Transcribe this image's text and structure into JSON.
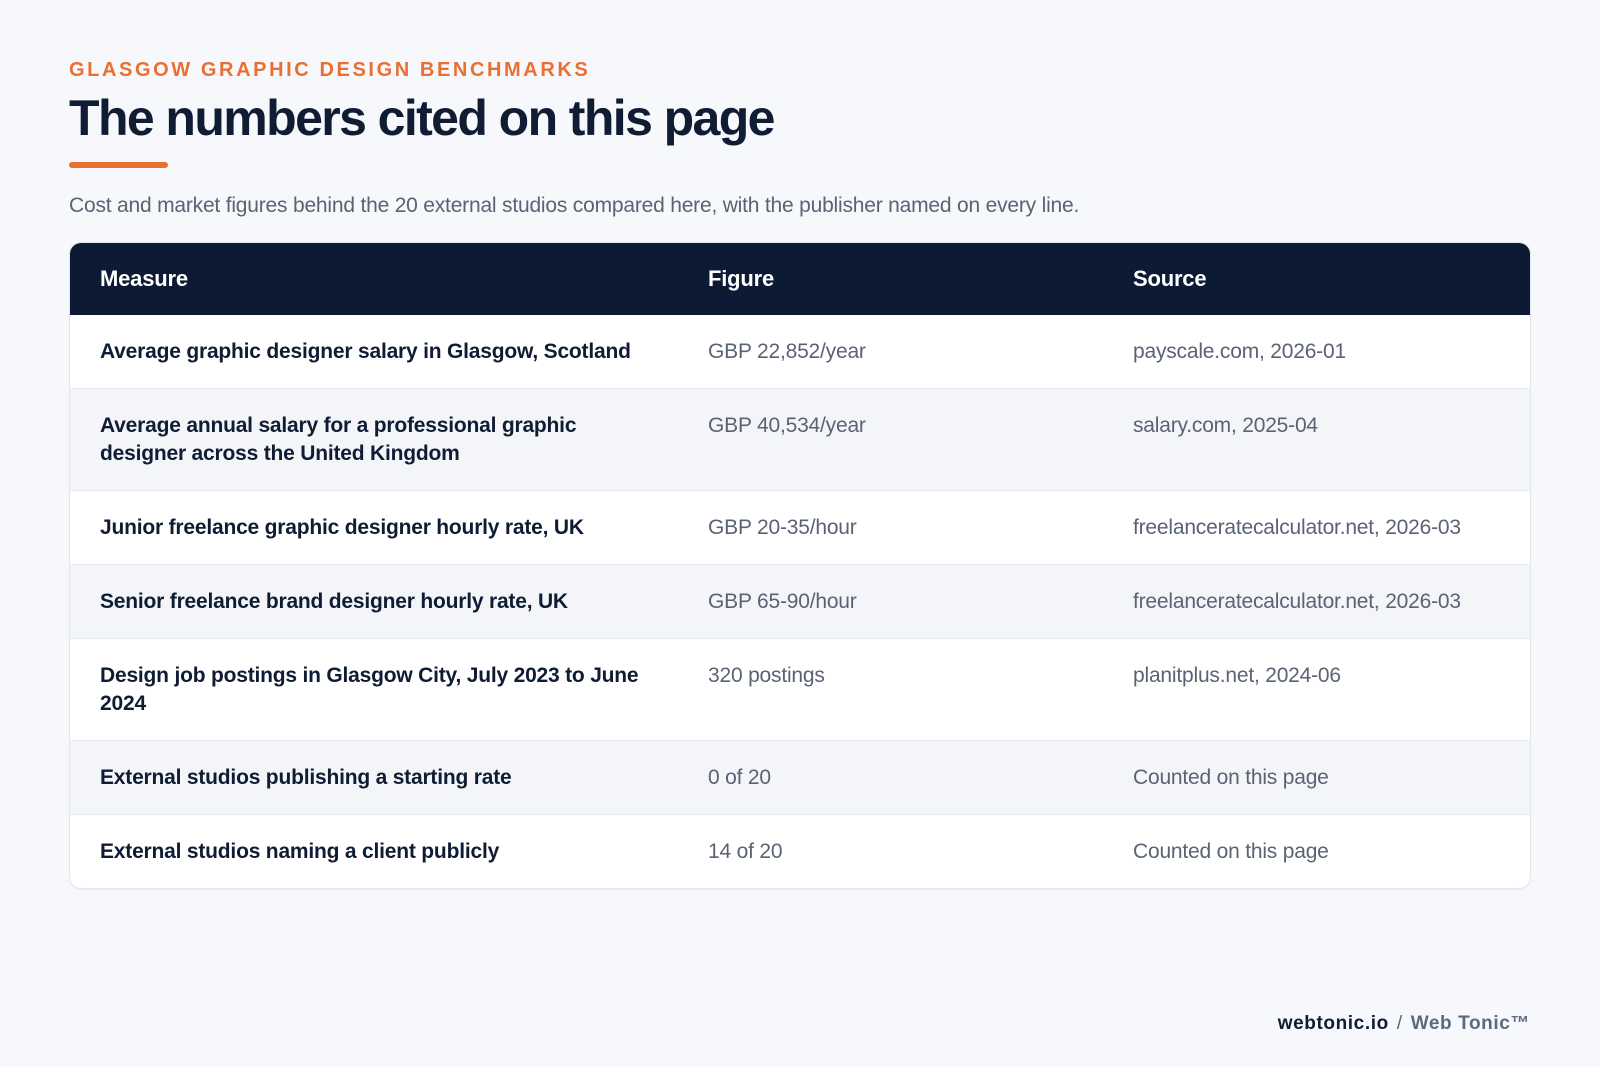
{
  "header": {
    "eyebrow": "GLASGOW GRAPHIC DESIGN BENCHMARKS",
    "title": "The numbers cited on this page",
    "subtitle": "Cost and market figures behind the 20 external studios compared here, with the publisher named on every line."
  },
  "table": {
    "columns": [
      "Measure",
      "Figure",
      "Source"
    ],
    "rows": [
      {
        "measure": "Average graphic designer salary in Glasgow, Scotland",
        "figure": "GBP 22,852/year",
        "source": "payscale.com, 2026-01"
      },
      {
        "measure": "Average annual salary for a professional graphic designer across the United Kingdom",
        "figure": "GBP 40,534/year",
        "source": "salary.com, 2025-04"
      },
      {
        "measure": "Junior freelance graphic designer hourly rate, UK",
        "figure": "GBP 20-35/hour",
        "source": "freelanceratecalculator.net, 2026-03"
      },
      {
        "measure": "Senior freelance brand designer hourly rate, UK",
        "figure": "GBP 65-90/hour",
        "source": "freelanceratecalculator.net, 2026-03"
      },
      {
        "measure": "Design job postings in Glasgow City, July 2023 to June 2024",
        "figure": "320 postings",
        "source": "planitplus.net, 2024-06"
      },
      {
        "measure": "External studios publishing a starting rate",
        "figure": "0 of 20",
        "source": "Counted on this page"
      },
      {
        "measure": "External studios naming a client publicly",
        "figure": "14 of 20",
        "source": "Counted on this page"
      }
    ]
  },
  "footer": {
    "domain": "webtonic.io",
    "separator": "/",
    "brand": "Web Tonic™"
  },
  "colors": {
    "accent": "#ea6f33",
    "header_bg": "#0d1a33",
    "text_dark": "#101c33",
    "text_muted": "#5a6374",
    "page_bg": "#f6f8fb"
  }
}
